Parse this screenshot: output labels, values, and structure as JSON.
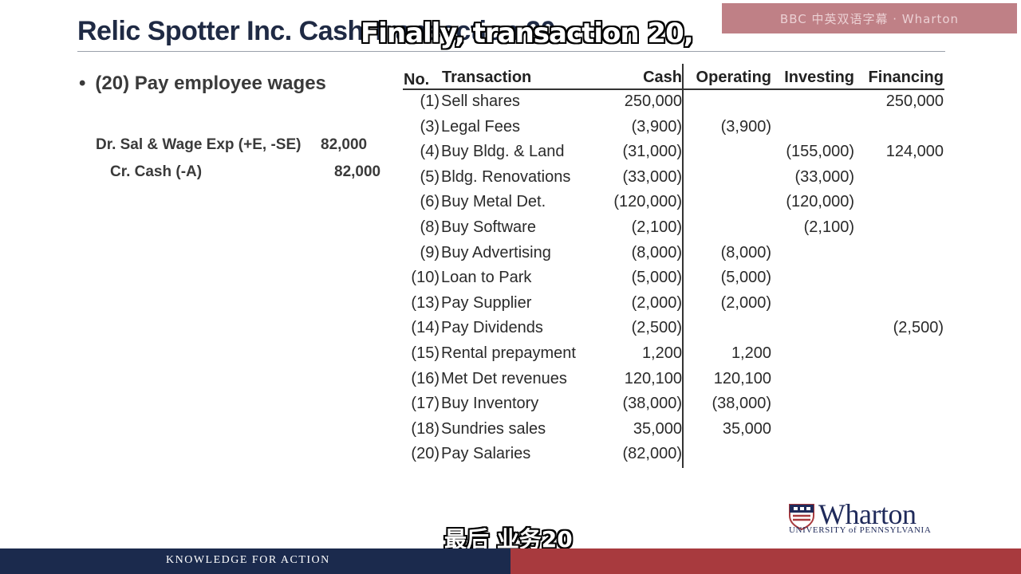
{
  "slide": {
    "title": "Relic Spotter Inc. Cash Transaction 20"
  },
  "watermark": "BBC 中英双语字幕 · Wharton",
  "captions": {
    "en": "Finally, transaction 20,",
    "zh": "最后 业务20"
  },
  "bullet": {
    "dot": "•",
    "text": "(20) Pay employee wages"
  },
  "journal": {
    "debit_label": "Dr. Sal & Wage Exp (+E, -SE)",
    "debit_amount": "82,000",
    "credit_label": "Cr. Cash (-A)",
    "credit_amount": "82,000"
  },
  "table": {
    "headers": {
      "no": "No.",
      "transaction": "Transaction",
      "cash": "Cash",
      "operating": "Operating",
      "investing": "Investing",
      "financing": "Financing"
    },
    "rows": [
      {
        "no": "(1)",
        "tx": "Sell shares",
        "cash": "250,000",
        "op": "",
        "inv": "",
        "fin": "250,000"
      },
      {
        "no": "(3)",
        "tx": "Legal Fees",
        "cash": "(3,900)",
        "op": "(3,900)",
        "inv": "",
        "fin": ""
      },
      {
        "no": "(4)",
        "tx": "Buy Bldg. & Land",
        "cash": "(31,000)",
        "op": "",
        "inv": "(155,000)",
        "fin": "124,000"
      },
      {
        "no": "(5)",
        "tx": "Bldg. Renovations",
        "cash": "(33,000)",
        "op": "",
        "inv": "(33,000)",
        "fin": ""
      },
      {
        "no": "(6)",
        "tx": "Buy Metal Det.",
        "cash": "(120,000)",
        "op": "",
        "inv": "(120,000)",
        "fin": ""
      },
      {
        "no": "(8)",
        "tx": "Buy Software",
        "cash": "(2,100)",
        "op": "",
        "inv": "(2,100)",
        "fin": ""
      },
      {
        "no": "(9)",
        "tx": "Buy Advertising",
        "cash": "(8,000)",
        "op": "(8,000)",
        "inv": "",
        "fin": ""
      },
      {
        "no": "(10)",
        "tx": "Loan to Park",
        "cash": "(5,000)",
        "op": "(5,000)",
        "inv": "",
        "fin": ""
      },
      {
        "no": "(13)",
        "tx": "Pay Supplier",
        "cash": "(2,000)",
        "op": "(2,000)",
        "inv": "",
        "fin": ""
      },
      {
        "no": "(14)",
        "tx": "Pay Dividends",
        "cash": "(2,500)",
        "op": "",
        "inv": "",
        "fin": "(2,500)"
      },
      {
        "no": "(15)",
        "tx": "Rental prepayment",
        "cash": "1,200",
        "op": "1,200",
        "inv": "",
        "fin": ""
      },
      {
        "no": "(16)",
        "tx": "Met Det revenues",
        "cash": "120,100",
        "op": "120,100",
        "inv": "",
        "fin": ""
      },
      {
        "no": "(17)",
        "tx": "Buy Inventory",
        "cash": "(38,000)",
        "op": "(38,000)",
        "inv": "",
        "fin": ""
      },
      {
        "no": "(18)",
        "tx": "Sundries sales",
        "cash": "35,000",
        "op": "35,000",
        "inv": "",
        "fin": ""
      },
      {
        "no": "(20)",
        "tx": "Pay Salaries",
        "cash": "(82,000)",
        "op": "",
        "inv": "",
        "fin": ""
      }
    ]
  },
  "logo": {
    "wordmark": "Wharton",
    "subtitle": "UNIVERSITY of PENNSYLVANIA"
  },
  "footer": {
    "tagline": "KNOWLEDGE FOR ACTION"
  },
  "colors": {
    "title": "#1f2a44",
    "footer_navy": "#1b2a4d",
    "footer_red": "#a83a3e"
  }
}
